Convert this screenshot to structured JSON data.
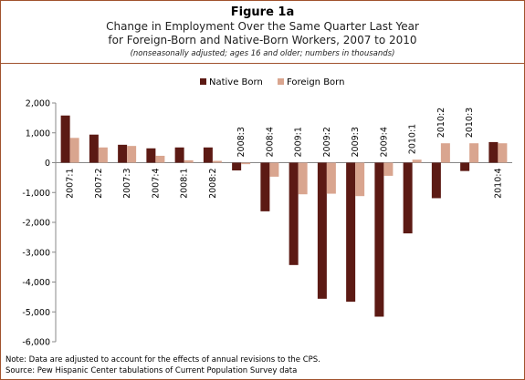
{
  "header": {
    "figure_label": "Figure 1a",
    "title_line1": "Change in Employment Over the Same Quarter Last Year",
    "title_line2": "for Foreign-Born and Native-Born Workers, 2007 to 2010",
    "note": "(nonseasonally adjusted; ages 16 and older; numbers in thousands)"
  },
  "footer": {
    "note": "Note: Data are adjusted to account for the effects of annual revisions to the CPS.",
    "source": "Source: Pew Hispanic Center tabulations of Current Population Survey data"
  },
  "chart_data": {
    "type": "bar",
    "categories": [
      "2007:1",
      "2007:2",
      "2007:3",
      "2007:4",
      "2008:1",
      "2008:2",
      "2008:3",
      "2008:4",
      "2009:1",
      "2009:2",
      "2009:3",
      "2009:4",
      "2010:1",
      "2010:2",
      "2010:3",
      "2010:4"
    ],
    "series": [
      {
        "name": "Native Born",
        "color": "#5c1a14",
        "values": [
          1580,
          940,
          600,
          480,
          510,
          510,
          -260,
          -1630,
          -3430,
          -4560,
          -4660,
          -5160,
          -2370,
          -1190,
          -280,
          690
        ]
      },
      {
        "name": "Foreign Born",
        "color": "#d9a58f",
        "values": [
          830,
          510,
          560,
          230,
          80,
          60,
          -50,
          -470,
          -1060,
          -1040,
          -1120,
          -440,
          100,
          650,
          650,
          650
        ]
      }
    ],
    "y_ticks": [
      "2,000",
      "1,000",
      "0",
      "-1,000",
      "-2,000",
      "-3,000",
      "-4,000",
      "-5,000",
      "-6,000"
    ],
    "ylim": [
      -6000,
      2000
    ],
    "legend_position": "top-center",
    "grid": false
  }
}
